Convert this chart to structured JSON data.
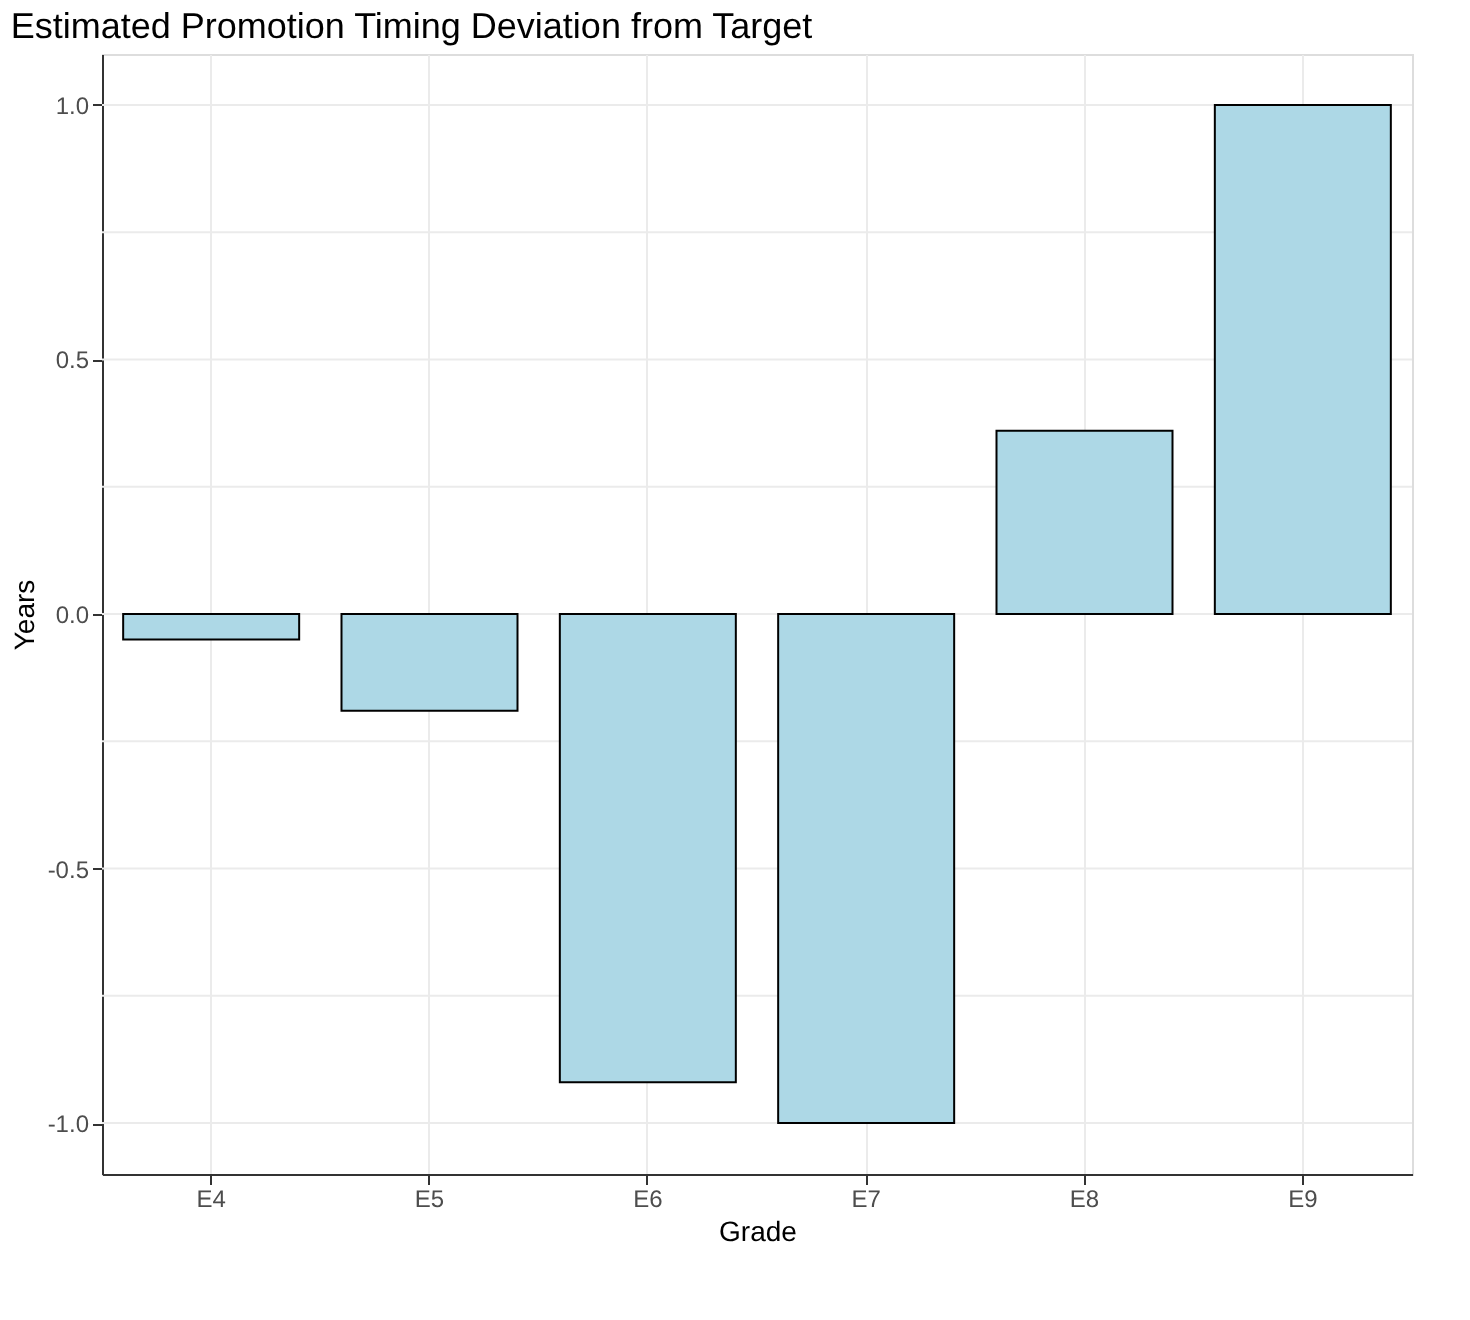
{
  "chart_data": {
    "type": "bar",
    "title": "Estimated Promotion Timing Deviation from Target",
    "xlabel": "Grade",
    "ylabel": "Years",
    "categories": [
      "E4",
      "E5",
      "E6",
      "E7",
      "E8",
      "E9"
    ],
    "values": [
      -0.05,
      -0.19,
      -0.92,
      -1.0,
      0.36,
      1.0
    ],
    "color": "#add8e6",
    "ylim": [
      -1.1,
      1.1
    ],
    "yticks": [
      {
        "value": -1.0,
        "label": "-1.0"
      },
      {
        "value": -0.75,
        "label": null
      },
      {
        "value": -0.5,
        "label": "-0.5"
      },
      {
        "value": -0.25,
        "label": null
      },
      {
        "value": 0.0,
        "label": "0.0"
      },
      {
        "value": 0.25,
        "label": null
      },
      {
        "value": 0.5,
        "label": "0.5"
      },
      {
        "value": 0.75,
        "label": null
      },
      {
        "value": 1.0,
        "label": "1.0"
      }
    ],
    "grid": true
  }
}
